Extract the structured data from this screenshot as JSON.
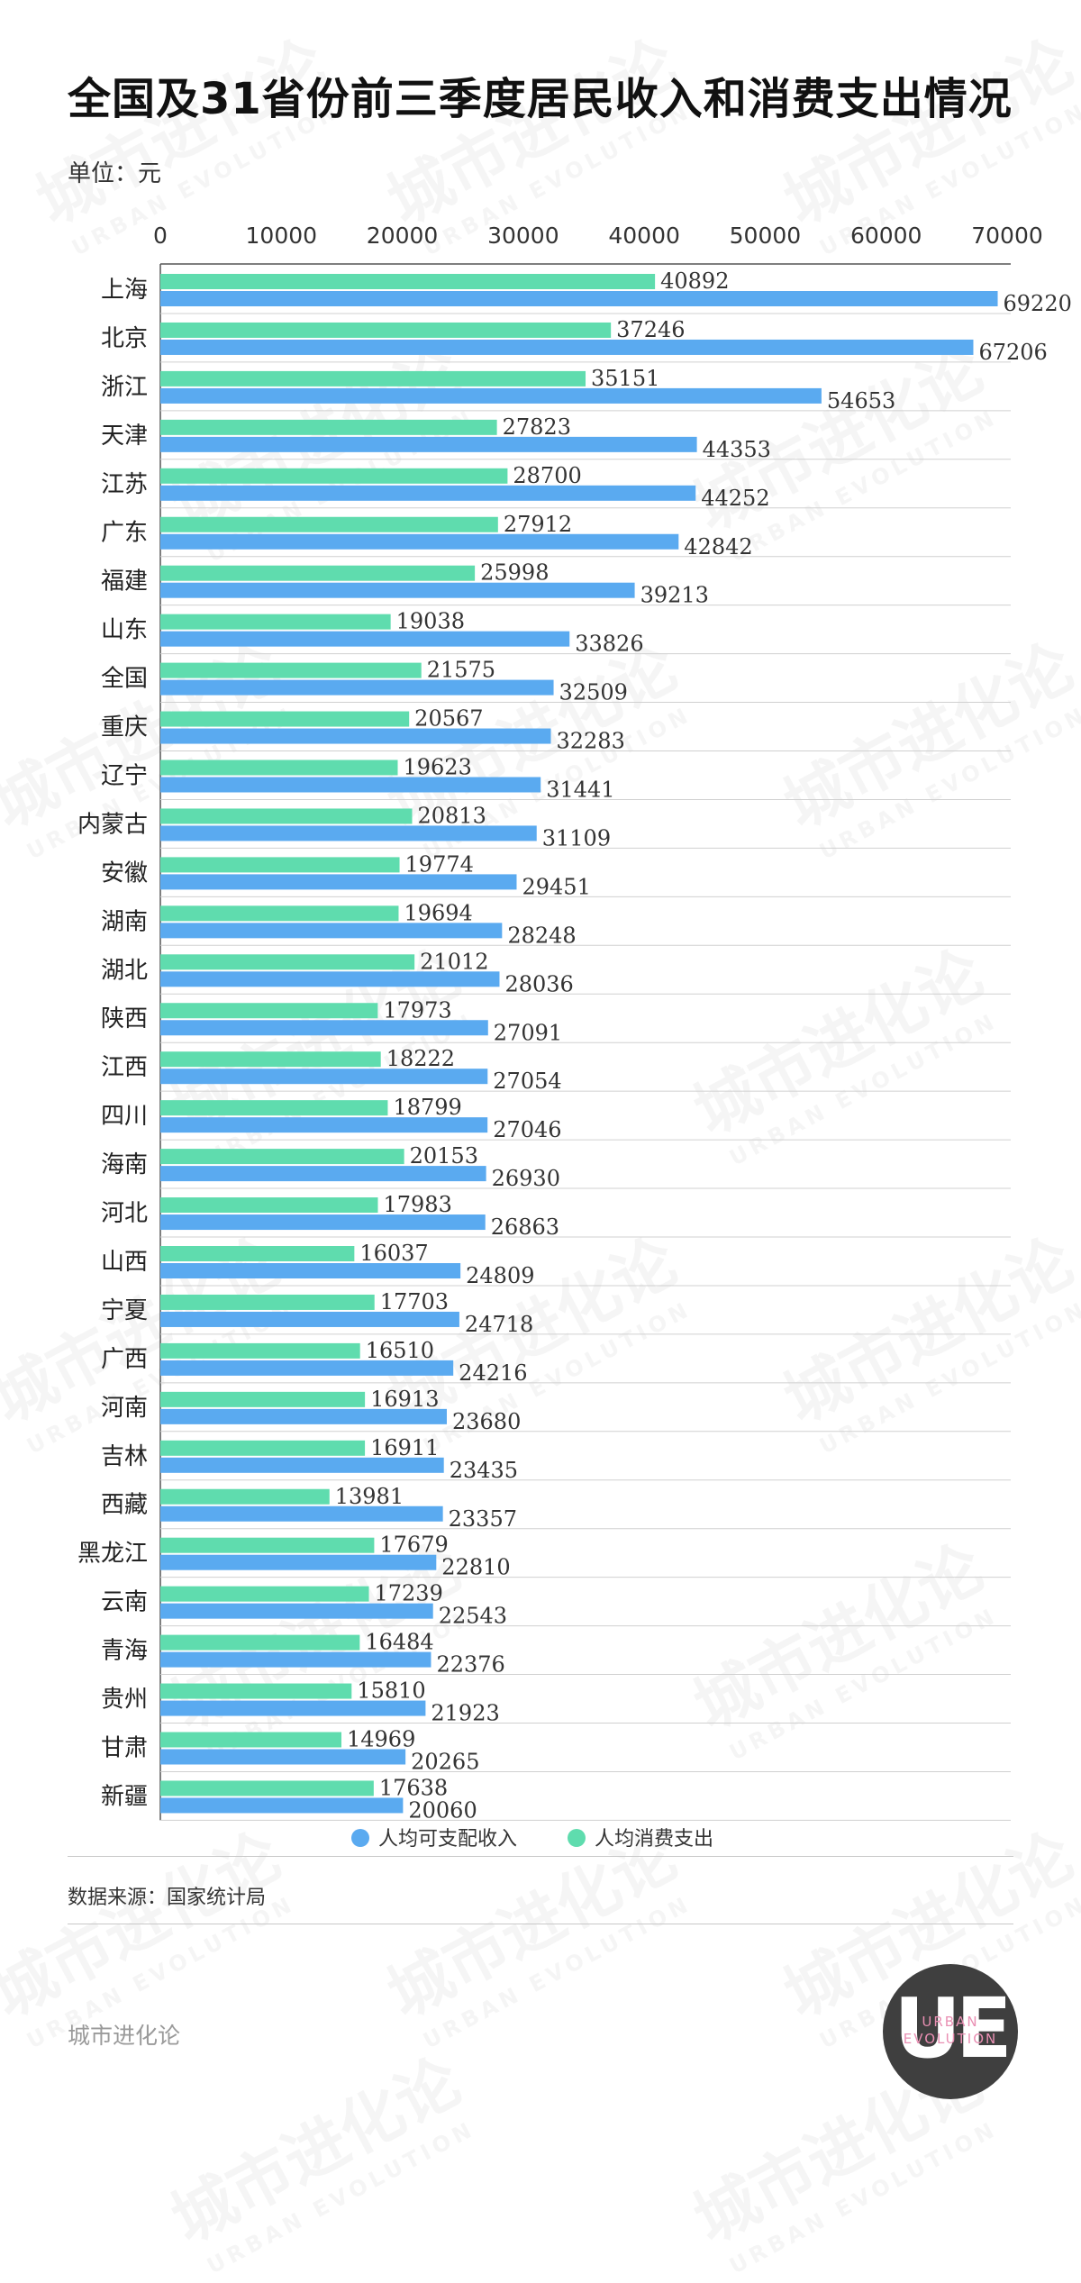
{
  "title": "全国及31省份前三季度居民收入和消费支出情况",
  "unit": "单位：元",
  "source": "数据来源：国家统计局",
  "brand": "城市进化论",
  "logo": {
    "letters": "UE",
    "line1": "URBAN",
    "line2": "EVOLUTION"
  },
  "watermark": {
    "text": "城市进化论",
    "sub": "URBAN EVOLUTION"
  },
  "colors": {
    "income": "#5aaaf0",
    "consumption": "#5fdcae"
  },
  "chart_data": {
    "type": "bar",
    "orientation": "horizontal",
    "xlim": [
      0,
      70000
    ],
    "ticks": [
      "0",
      "10000",
      "20000",
      "30000",
      "40000",
      "50000",
      "60000",
      "70000"
    ],
    "tick_values": [
      0,
      10000,
      20000,
      30000,
      40000,
      50000,
      60000,
      70000
    ],
    "categories": [
      "上海",
      "北京",
      "浙江",
      "天津",
      "江苏",
      "广东",
      "福建",
      "山东",
      "全国",
      "重庆",
      "辽宁",
      "内蒙古",
      "安徽",
      "湖南",
      "湖北",
      "陕西",
      "江西",
      "四川",
      "海南",
      "河北",
      "山西",
      "宁夏",
      "广西",
      "河南",
      "吉林",
      "西藏",
      "黑龙江",
      "云南",
      "青海",
      "贵州",
      "甘肃",
      "新疆"
    ],
    "series": [
      {
        "name": "人均消费支出",
        "color": "#5fdcae",
        "values": [
          40892,
          37246,
          35151,
          27823,
          28700,
          27912,
          25998,
          19038,
          21575,
          20567,
          19623,
          20813,
          19774,
          19694,
          21012,
          17973,
          18222,
          18799,
          20153,
          17983,
          16037,
          17703,
          16510,
          16913,
          16911,
          13981,
          17679,
          17239,
          16484,
          15810,
          14969,
          17638
        ]
      },
      {
        "name": "人均可支配收入",
        "color": "#5aaaf0",
        "values": [
          69220,
          67206,
          54653,
          44353,
          44252,
          42842,
          39213,
          33826,
          32509,
          32283,
          31441,
          31109,
          29451,
          28248,
          28036,
          27091,
          27054,
          27046,
          26930,
          26863,
          24809,
          24718,
          24216,
          23680,
          23435,
          23357,
          22810,
          22543,
          22376,
          21923,
          20265,
          20060
        ]
      }
    ],
    "legend": {
      "position": "bottom",
      "items": [
        "人均可支配收入",
        "人均消费支出"
      ]
    },
    "grid": false
  }
}
